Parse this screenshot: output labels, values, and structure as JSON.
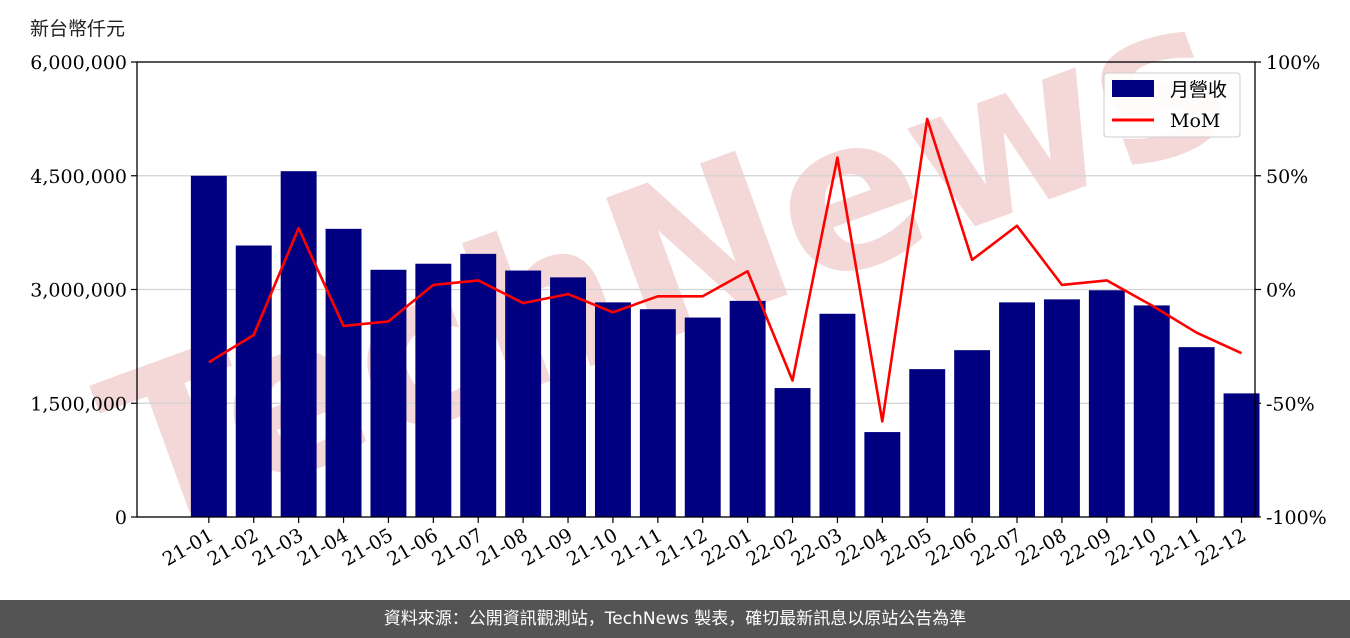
{
  "header": {
    "unit_label": "新台幣仟元"
  },
  "footer": {
    "text": "資料來源：公開資訊觀測站，TechNews 製表，確切最新訊息以原站公告為準"
  },
  "watermark": {
    "text": "TechNews"
  },
  "colors": {
    "bar": "#000080",
    "line": "#ff0000",
    "grid": "#d3d3d3",
    "footer_bg": "#545454",
    "watermark": "#f4d7d7"
  },
  "chart_data": {
    "type": "bar",
    "categories": [
      "21-01",
      "21-02",
      "21-03",
      "21-04",
      "21-05",
      "21-06",
      "21-07",
      "21-08",
      "21-09",
      "21-10",
      "21-11",
      "21-12",
      "22-01",
      "22-02",
      "22-03",
      "22-04",
      "22-05",
      "22-06",
      "22-07",
      "22-08",
      "22-09",
      "22-10",
      "22-11",
      "22-12"
    ],
    "series": [
      {
        "name": "月營收",
        "type": "bar",
        "axis": "left",
        "values": [
          4500000,
          3580000,
          4560000,
          3800000,
          3260000,
          3340000,
          3470000,
          3250000,
          3160000,
          2830000,
          2740000,
          2630000,
          2850000,
          1700000,
          2680000,
          1120000,
          1950000,
          2200000,
          2830000,
          2870000,
          2990000,
          2790000,
          2240000,
          1630000
        ]
      },
      {
        "name": "MoM",
        "type": "line",
        "axis": "right",
        "values": [
          -32,
          -20,
          27,
          -16,
          -14,
          2,
          4,
          -6,
          -2,
          -10,
          -3,
          -3,
          8,
          -40,
          58,
          -58,
          75,
          13,
          28,
          2,
          4,
          -7,
          -19,
          -28
        ]
      }
    ],
    "y_left": {
      "min": 0,
      "max": 6000000,
      "ticks": [
        0,
        1500000,
        3000000,
        4500000,
        6000000
      ],
      "tick_labels": [
        "0",
        "1,500,000",
        "3,000,000",
        "4,500,000",
        "6,000,000"
      ]
    },
    "y_right": {
      "min": -100,
      "max": 100,
      "ticks": [
        -100,
        -50,
        0,
        50,
        100
      ],
      "tick_labels": [
        "-100%",
        "-50%",
        "0%",
        "50%",
        "100%"
      ]
    },
    "grid": true,
    "legend_position": "top-right"
  }
}
